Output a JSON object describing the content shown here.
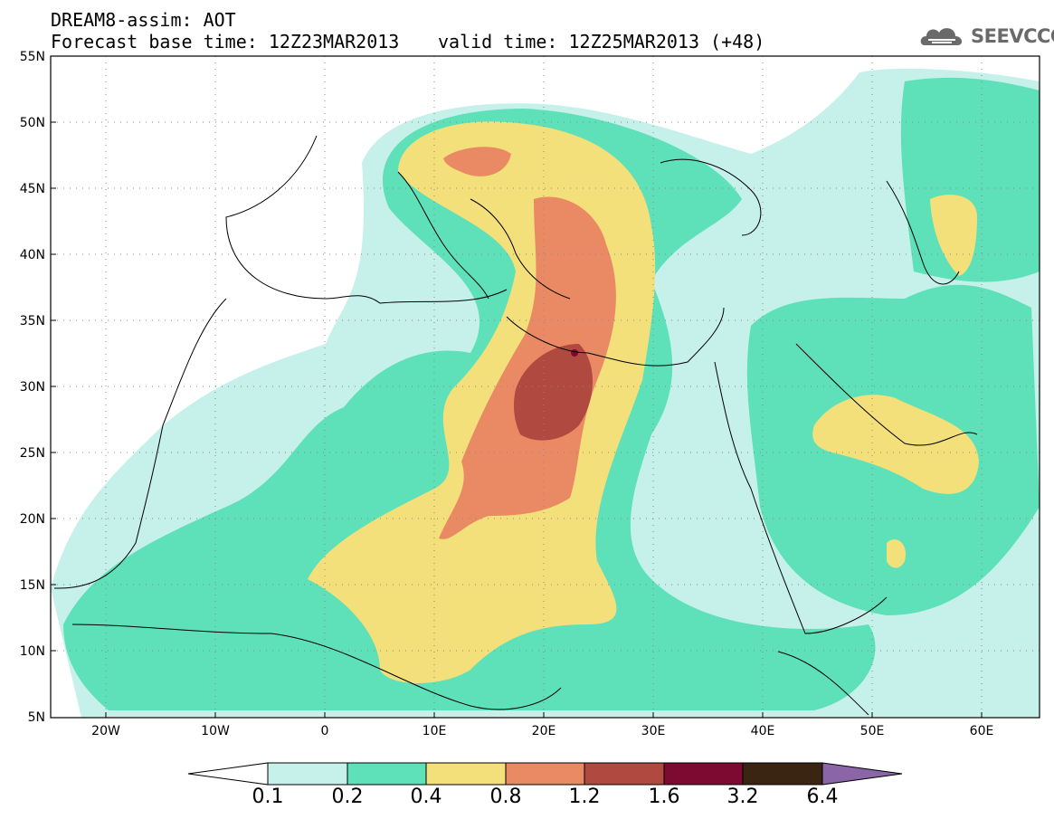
{
  "header": {
    "title_line1": "DREAM8-assim: AOT",
    "title_line2_base": "Forecast base time: 12Z23MAR2013",
    "title_line2_valid": "valid time: 12Z25MAR2013 (+48)",
    "logo_text": "SEEVCCC",
    "logo_icon": "cloud-logo-icon"
  },
  "map": {
    "projection": "lat-lon",
    "lon_range": [
      -25,
      65
    ],
    "lat_range": [
      5,
      55
    ],
    "lat_ticks": [
      {
        "value": 55,
        "label": "55N"
      },
      {
        "value": 50,
        "label": "50N"
      },
      {
        "value": 45,
        "label": "45N"
      },
      {
        "value": 40,
        "label": "40N"
      },
      {
        "value": 35,
        "label": "35N"
      },
      {
        "value": 30,
        "label": "30N"
      },
      {
        "value": 25,
        "label": "25N"
      },
      {
        "value": 20,
        "label": "20N"
      },
      {
        "value": 15,
        "label": "15N"
      },
      {
        "value": 10,
        "label": "10N"
      },
      {
        "value": 5,
        "label": "5N"
      }
    ],
    "lon_ticks": [
      {
        "value": -20,
        "label": "20W"
      },
      {
        "value": -10,
        "label": "10W"
      },
      {
        "value": 0,
        "label": "0"
      },
      {
        "value": 10,
        "label": "10E"
      },
      {
        "value": 20,
        "label": "20E"
      },
      {
        "value": 30,
        "label": "30E"
      },
      {
        "value": 40,
        "label": "40E"
      },
      {
        "value": 50,
        "label": "50E"
      },
      {
        "value": 60,
        "label": "60E"
      }
    ],
    "grid": "dotted"
  },
  "colorbar": {
    "labels": [
      "0.1",
      "0.2",
      "0.4",
      "0.8",
      "1.2",
      "1.6",
      "3.2",
      "6.4"
    ],
    "colors": [
      "#ffffff",
      "#c6f0ea",
      "#5ee0b8",
      "#f4e07a",
      "#e98a64",
      "#b04a40",
      "#7d0a30",
      "#3a2412",
      "#8a66a8"
    ]
  },
  "field_colors": {
    "c1": "#c6f0ea",
    "c2": "#5ee0b8",
    "c3": "#f4e07a",
    "c4": "#e98a64",
    "c5": "#b04a40",
    "c6": "#7d0a30"
  }
}
